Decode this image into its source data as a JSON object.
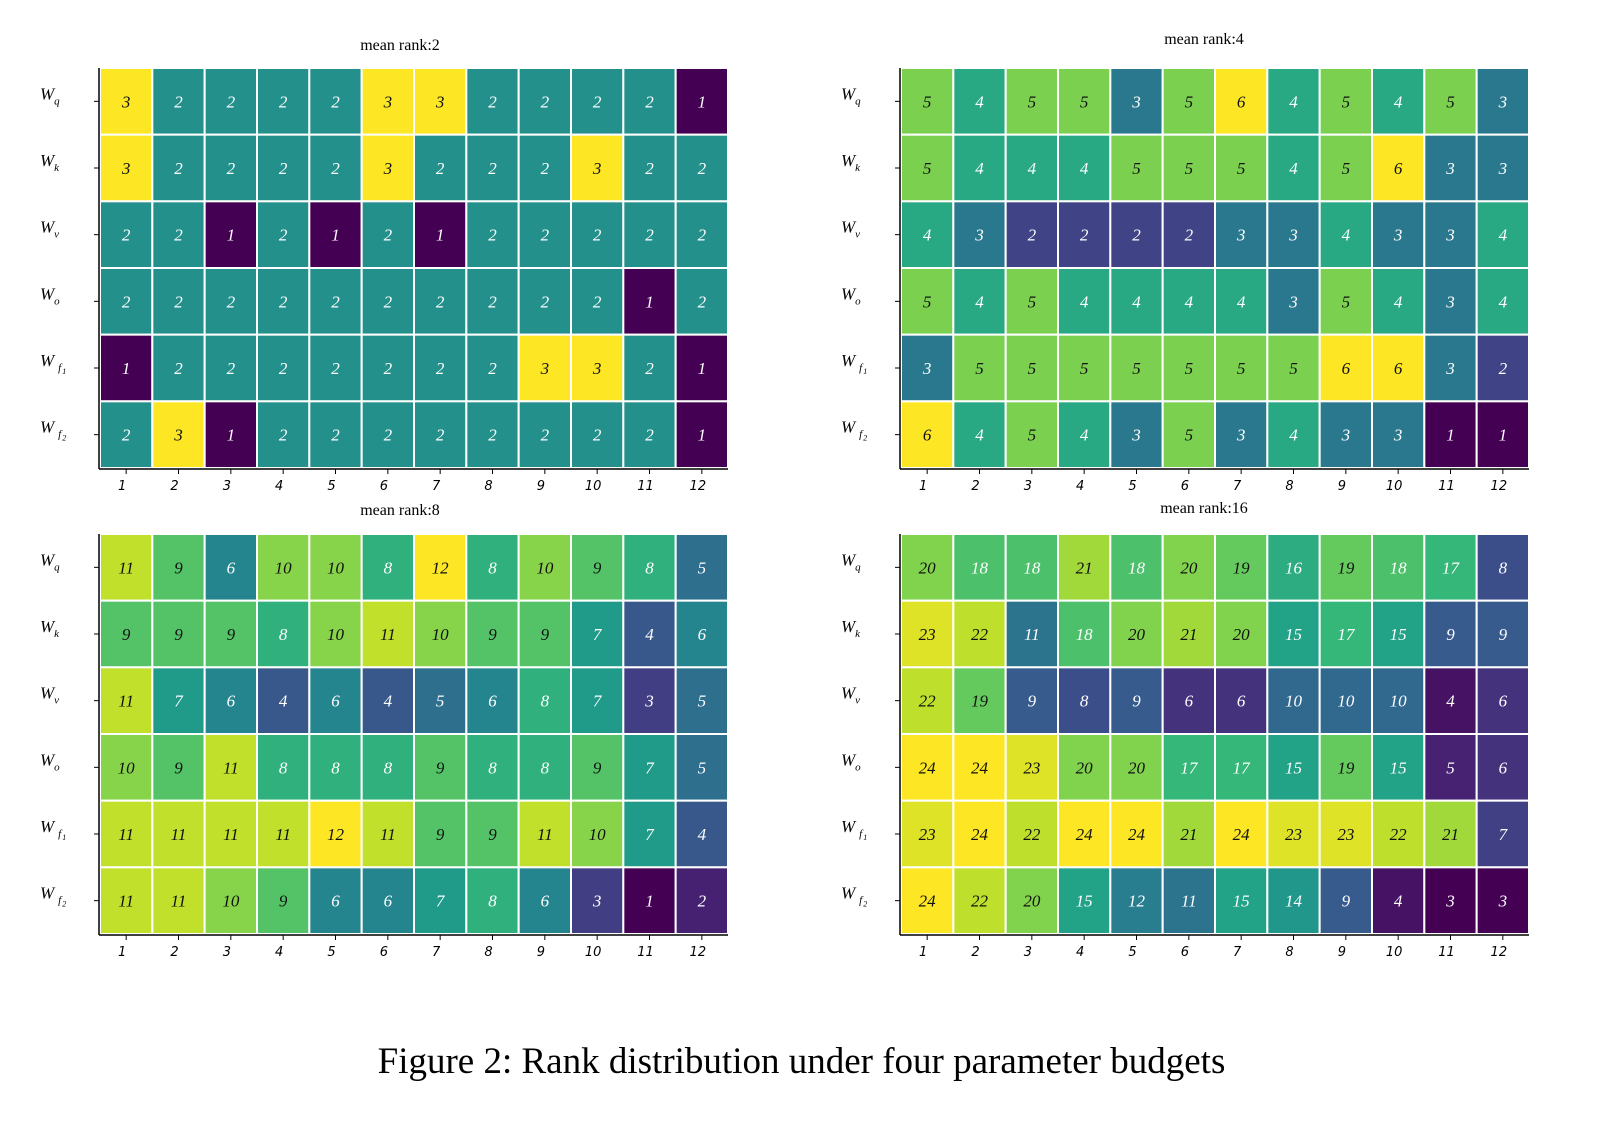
{
  "caption": "Figure 2: Rank distribution under four parameter budgets",
  "chart_data": [
    {
      "type": "heatmap",
      "title": "mean rank:2",
      "rows": [
        {
          "main": "W",
          "sub": "q",
          "sub2": ""
        },
        {
          "main": "W",
          "sub": "k",
          "sub2": ""
        },
        {
          "main": "W",
          "sub": "v",
          "sub2": ""
        },
        {
          "main": "W",
          "sub": "o",
          "sub2": ""
        },
        {
          "main": "W",
          "sub": "f",
          "sub2": "1"
        },
        {
          "main": "W",
          "sub": "f",
          "sub2": "2"
        }
      ],
      "columns": [
        "1",
        "2",
        "3",
        "4",
        "5",
        "6",
        "7",
        "8",
        "9",
        "10",
        "11",
        "12"
      ],
      "values": [
        [
          3,
          2,
          2,
          2,
          2,
          3,
          3,
          2,
          2,
          2,
          2,
          1
        ],
        [
          3,
          2,
          2,
          2,
          2,
          3,
          2,
          2,
          2,
          3,
          2,
          2
        ],
        [
          2,
          2,
          1,
          2,
          1,
          2,
          1,
          2,
          2,
          2,
          2,
          2
        ],
        [
          2,
          2,
          2,
          2,
          2,
          2,
          2,
          2,
          2,
          2,
          1,
          2
        ],
        [
          1,
          2,
          2,
          2,
          2,
          2,
          2,
          2,
          3,
          3,
          2,
          1
        ],
        [
          2,
          3,
          1,
          2,
          2,
          2,
          2,
          2,
          2,
          2,
          2,
          1
        ]
      ],
      "vmin": 1,
      "vmax": 3
    },
    {
      "type": "heatmap",
      "title": "mean rank:4",
      "rows": [
        {
          "main": "W",
          "sub": "q",
          "sub2": ""
        },
        {
          "main": "W",
          "sub": "k",
          "sub2": ""
        },
        {
          "main": "W",
          "sub": "v",
          "sub2": ""
        },
        {
          "main": "W",
          "sub": "o",
          "sub2": ""
        },
        {
          "main": "W",
          "sub": "f",
          "sub2": "1"
        },
        {
          "main": "W",
          "sub": "f",
          "sub2": "2"
        }
      ],
      "columns": [
        "1",
        "2",
        "3",
        "4",
        "5",
        "6",
        "7",
        "8",
        "9",
        "10",
        "11",
        "12"
      ],
      "values": [
        [
          5,
          4,
          5,
          5,
          3,
          5,
          6,
          4,
          5,
          4,
          5,
          3
        ],
        [
          5,
          4,
          4,
          4,
          5,
          5,
          5,
          4,
          5,
          6,
          3,
          3
        ],
        [
          4,
          3,
          2,
          2,
          2,
          2,
          3,
          3,
          4,
          3,
          3,
          4
        ],
        [
          5,
          4,
          5,
          4,
          4,
          4,
          4,
          3,
          5,
          4,
          3,
          4
        ],
        [
          3,
          5,
          5,
          5,
          5,
          5,
          5,
          5,
          6,
          6,
          3,
          2
        ],
        [
          6,
          4,
          5,
          4,
          3,
          5,
          3,
          4,
          3,
          3,
          1,
          1
        ]
      ],
      "vmin": 1,
      "vmax": 6
    },
    {
      "type": "heatmap",
      "title": "mean rank:8",
      "rows": [
        {
          "main": "W",
          "sub": "q",
          "sub2": ""
        },
        {
          "main": "W",
          "sub": "k",
          "sub2": ""
        },
        {
          "main": "W",
          "sub": "v",
          "sub2": ""
        },
        {
          "main": "W",
          "sub": "o",
          "sub2": ""
        },
        {
          "main": "W",
          "sub": "f",
          "sub2": "1"
        },
        {
          "main": "W",
          "sub": "f",
          "sub2": "2"
        }
      ],
      "columns": [
        "1",
        "2",
        "3",
        "4",
        "5",
        "6",
        "7",
        "8",
        "9",
        "10",
        "11",
        "12"
      ],
      "values": [
        [
          11,
          9,
          6,
          10,
          10,
          8,
          12,
          8,
          10,
          9,
          8,
          5
        ],
        [
          9,
          9,
          9,
          8,
          10,
          11,
          10,
          9,
          9,
          7,
          4,
          6
        ],
        [
          11,
          7,
          6,
          4,
          6,
          4,
          5,
          6,
          8,
          7,
          3,
          5
        ],
        [
          10,
          9,
          11,
          8,
          8,
          8,
          9,
          8,
          8,
          9,
          7,
          5
        ],
        [
          11,
          11,
          11,
          11,
          12,
          11,
          9,
          9,
          11,
          10,
          7,
          4
        ],
        [
          11,
          11,
          10,
          9,
          6,
          6,
          7,
          8,
          6,
          3,
          1,
          2
        ]
      ],
      "vmin": 1,
      "vmax": 12
    },
    {
      "type": "heatmap",
      "title": "mean rank:16",
      "rows": [
        {
          "main": "W",
          "sub": "q",
          "sub2": ""
        },
        {
          "main": "W",
          "sub": "k",
          "sub2": ""
        },
        {
          "main": "W",
          "sub": "v",
          "sub2": ""
        },
        {
          "main": "W",
          "sub": "o",
          "sub2": ""
        },
        {
          "main": "W",
          "sub": "f",
          "sub2": "1"
        },
        {
          "main": "W",
          "sub": "f",
          "sub2": "2"
        }
      ],
      "columns": [
        "1",
        "2",
        "3",
        "4",
        "5",
        "6",
        "7",
        "8",
        "9",
        "10",
        "11",
        "12"
      ],
      "values": [
        [
          20,
          18,
          18,
          21,
          18,
          20,
          19,
          16,
          19,
          18,
          17,
          8
        ],
        [
          23,
          22,
          11,
          18,
          20,
          21,
          20,
          15,
          17,
          15,
          9,
          9
        ],
        [
          22,
          19,
          9,
          8,
          9,
          6,
          6,
          10,
          10,
          10,
          4,
          6
        ],
        [
          24,
          24,
          23,
          20,
          20,
          17,
          17,
          15,
          19,
          15,
          5,
          6
        ],
        [
          23,
          24,
          22,
          24,
          24,
          21,
          24,
          23,
          23,
          22,
          21,
          7
        ],
        [
          24,
          22,
          20,
          15,
          12,
          11,
          15,
          14,
          9,
          4,
          3,
          3
        ]
      ],
      "vmin": 3,
      "vmax": 24
    }
  ]
}
